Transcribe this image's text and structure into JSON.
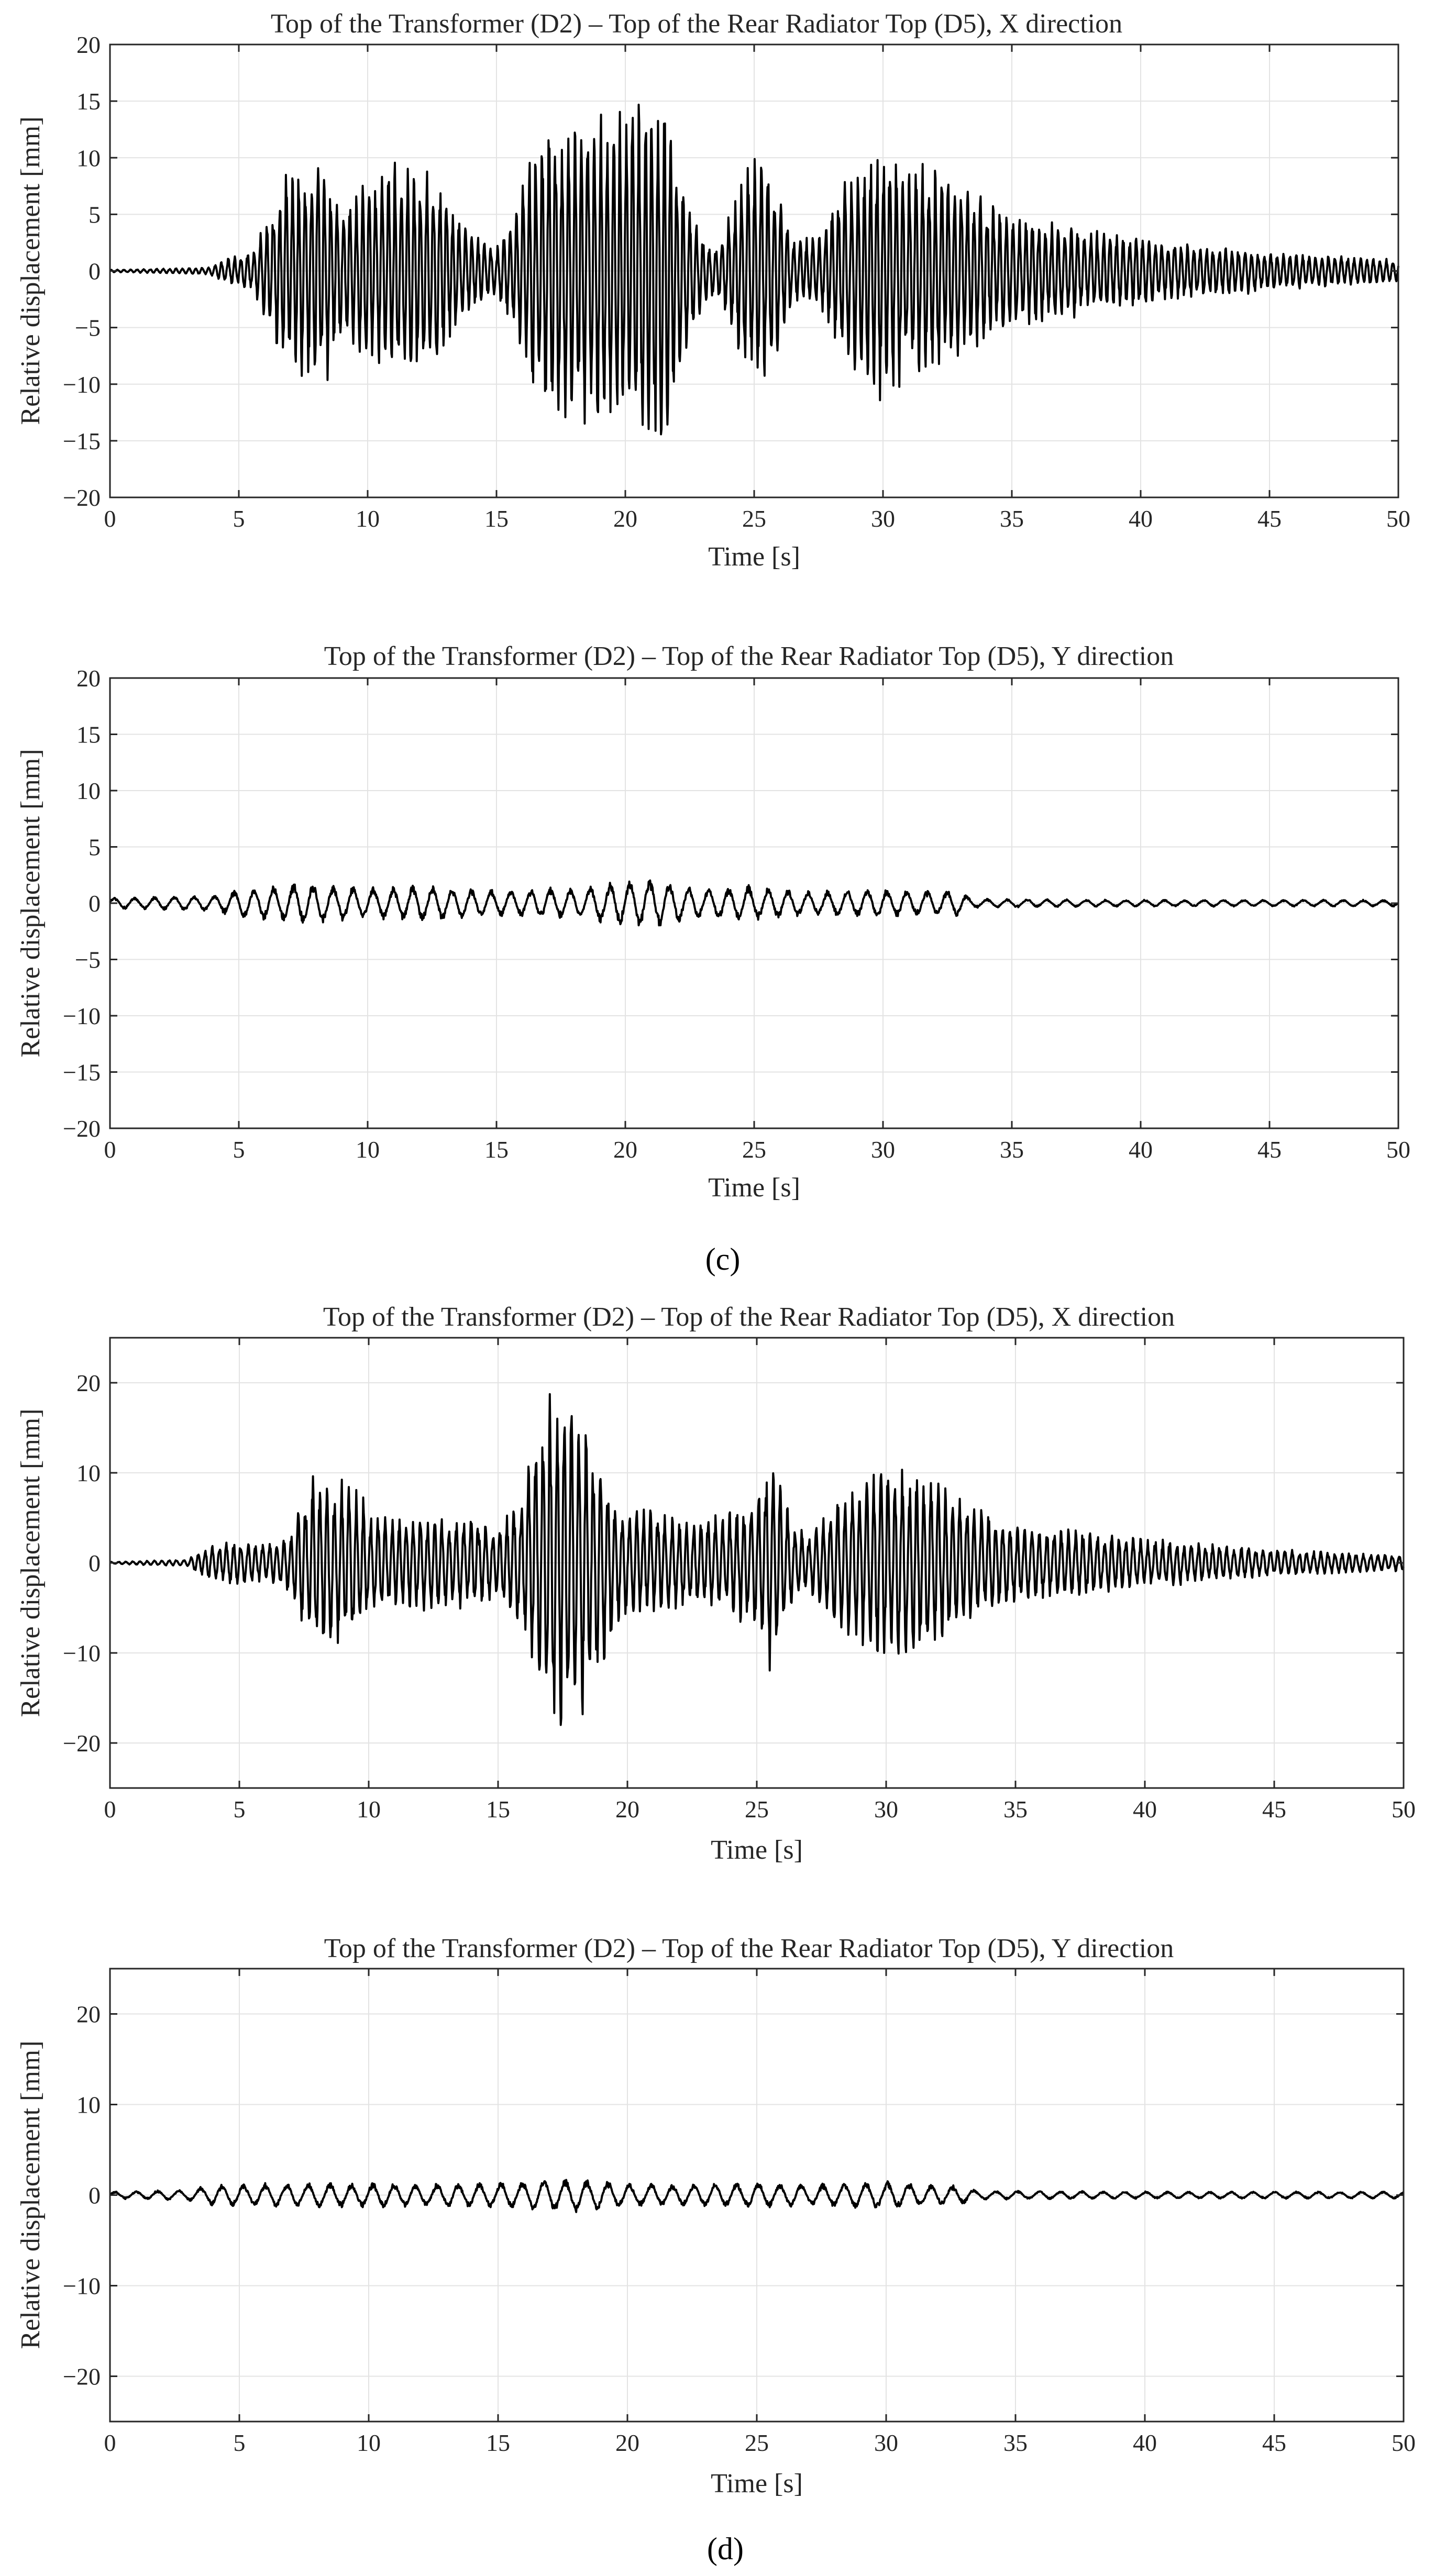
{
  "colors": {
    "trace": "#000000",
    "axis": "#262626",
    "grid": "#e3e3e3",
    "background": "#ffffff"
  },
  "panel_labels": [
    "(c)",
    "(d)"
  ],
  "chart_data": [
    {
      "type": "line",
      "title": "Top of the Transformer (D2) – Top of the Rear Radiator Top (D5), X direction",
      "xlabel": "Time [s]",
      "ylabel": "Relative displacement [mm]",
      "xlim": [
        0,
        50
      ],
      "ylim": [
        -20,
        20
      ],
      "xticks": [
        0,
        5,
        10,
        15,
        20,
        25,
        30,
        35,
        40,
        45,
        50
      ],
      "yticks": [
        -20,
        -15,
        -10,
        -5,
        0,
        5,
        10,
        15,
        20
      ],
      "grid": true,
      "series": [
        {
          "envelope": [
            [
              0,
              0.1
            ],
            [
              3.8,
              0.3
            ],
            [
              4.6,
              1.2
            ],
            [
              5.5,
              1.8
            ],
            [
              6.2,
              5.0
            ],
            [
              6.8,
              9.0
            ],
            [
              7.5,
              9.5
            ],
            [
              8.3,
              10.5
            ],
            [
              9.0,
              6.0
            ],
            [
              10.0,
              8.0
            ],
            [
              11.0,
              9.5
            ],
            [
              12.0,
              10.0
            ],
            [
              12.8,
              8.5
            ],
            [
              13.5,
              5.0
            ],
            [
              14.3,
              3.0
            ],
            [
              15.0,
              2.0
            ],
            [
              15.8,
              6.0
            ],
            [
              16.5,
              12.0
            ],
            [
              17.5,
              13.0
            ],
            [
              18.5,
              14.0
            ],
            [
              19.5,
              13.5
            ],
            [
              20.5,
              16.5
            ],
            [
              21.3,
              17.0
            ],
            [
              22.0,
              11.0
            ],
            [
              22.8,
              4.0
            ],
            [
              23.5,
              2.0
            ],
            [
              24.3,
              7.0
            ],
            [
              25.0,
              11.0
            ],
            [
              25.8,
              8.5
            ],
            [
              26.5,
              3.0
            ],
            [
              27.5,
              3.0
            ],
            [
              28.2,
              7.0
            ],
            [
              29.0,
              9.5
            ],
            [
              30.0,
              12.0
            ],
            [
              31.0,
              9.5
            ],
            [
              32.0,
              9.5
            ],
            [
              33.0,
              8.0
            ],
            [
              35.0,
              5.0
            ],
            [
              40.0,
              3.0
            ],
            [
              45.0,
              1.8
            ],
            [
              50.0,
              1.0
            ]
          ],
          "cycles_per_second": 4.0
        }
      ]
    },
    {
      "type": "line",
      "title": "Top of the Transformer (D2) – Top of the Rear Radiator Top (D5), Y direction",
      "xlabel": "Time [s]",
      "ylabel": "Relative displacement [mm]",
      "xlim": [
        0,
        50
      ],
      "ylim": [
        -20,
        20
      ],
      "xticks": [
        0,
        5,
        10,
        15,
        20,
        25,
        30,
        35,
        40,
        45,
        50
      ],
      "yticks": [
        -20,
        -15,
        -10,
        -5,
        0,
        5,
        10,
        15,
        20
      ],
      "grid": true,
      "series": [
        {
          "envelope": [
            [
              0,
              0.5
            ],
            [
              4.0,
              0.7
            ],
            [
              5.0,
              1.3
            ],
            [
              7.5,
              1.8
            ],
            [
              10.0,
              1.4
            ],
            [
              12.0,
              1.6
            ],
            [
              15.0,
              1.2
            ],
            [
              18.0,
              1.4
            ],
            [
              21.0,
              2.3
            ],
            [
              23.0,
              1.3
            ],
            [
              25.0,
              1.6
            ],
            [
              27.0,
              1.1
            ],
            [
              30.0,
              1.3
            ],
            [
              32.0,
              1.1
            ],
            [
              32.8,
              1.3
            ],
            [
              33.5,
              0.4
            ],
            [
              40.0,
              0.3
            ],
            [
              50.0,
              0.3
            ]
          ],
          "cycles_per_second": 1.3
        }
      ]
    },
    {
      "type": "line",
      "title": "Top of the Transformer (D2) – Top of the Rear Radiator Top (D5), X direction",
      "xlabel": "Time [s]",
      "ylabel": "Relative displacement [mm]",
      "xlim": [
        0,
        50
      ],
      "ylim": [
        -25,
        25
      ],
      "xticks": [
        0,
        5,
        10,
        15,
        20,
        25,
        30,
        35,
        40,
        45,
        50
      ],
      "yticks": [
        -20,
        -10,
        0,
        10,
        20
      ],
      "grid": true,
      "series": [
        {
          "envelope": [
            [
              0,
              0.1
            ],
            [
              3.0,
              0.4
            ],
            [
              3.8,
              2.0
            ],
            [
              5.0,
              2.5
            ],
            [
              6.0,
              2.0
            ],
            [
              7.0,
              3.5
            ],
            [
              7.8,
              10.0
            ],
            [
              8.5,
              9.0
            ],
            [
              9.3,
              10.0
            ],
            [
              10.0,
              6.0
            ],
            [
              11.0,
              5.0
            ],
            [
              12.0,
              5.5
            ],
            [
              13.0,
              5.0
            ],
            [
              14.0,
              5.5
            ],
            [
              15.0,
              4.0
            ],
            [
              15.8,
              7.0
            ],
            [
              16.5,
              14.0
            ],
            [
              17.2,
              20.5
            ],
            [
              17.7,
              20.0
            ],
            [
              18.3,
              17.0
            ],
            [
              19.0,
              12.0
            ],
            [
              19.8,
              6.0
            ],
            [
              21.0,
              6.0
            ],
            [
              22.0,
              5.0
            ],
            [
              23.0,
              5.0
            ],
            [
              24.0,
              6.0
            ],
            [
              25.0,
              7.5
            ],
            [
              25.6,
              13.5
            ],
            [
              26.3,
              5.0
            ],
            [
              27.0,
              3.0
            ],
            [
              28.0,
              7.0
            ],
            [
              29.0,
              9.5
            ],
            [
              30.0,
              11.5
            ],
            [
              31.5,
              10.0
            ],
            [
              33.0,
              7.0
            ],
            [
              35.0,
              4.5
            ],
            [
              40.0,
              2.8
            ],
            [
              45.0,
              1.5
            ],
            [
              50.0,
              0.9
            ]
          ],
          "cycles_per_second": 3.6
        }
      ]
    },
    {
      "type": "line",
      "title": "Top of the Transformer (D2) – Top of the Rear Radiator Top (D5), Y direction",
      "xlabel": "Time [s]",
      "ylabel": "Relative displacement [mm]",
      "xlim": [
        0,
        50
      ],
      "ylim": [
        -25,
        25
      ],
      "xticks": [
        0,
        5,
        10,
        15,
        20,
        25,
        30,
        35,
        40,
        45,
        50
      ],
      "yticks": [
        -20,
        -10,
        0,
        10,
        20
      ],
      "grid": true,
      "series": [
        {
          "envelope": [
            [
              0,
              0.4
            ],
            [
              3.0,
              0.6
            ],
            [
              4.0,
              1.2
            ],
            [
              8.0,
              1.4
            ],
            [
              12.0,
              1.3
            ],
            [
              15.0,
              1.4
            ],
            [
              18.0,
              1.9
            ],
            [
              20.0,
              1.3
            ],
            [
              22.0,
              1.2
            ],
            [
              25.0,
              1.4
            ],
            [
              27.0,
              1.2
            ],
            [
              30.0,
              1.5
            ],
            [
              33.0,
              1.0
            ],
            [
              33.5,
              0.5
            ],
            [
              40.0,
              0.4
            ],
            [
              50.0,
              0.4
            ]
          ],
          "cycles_per_second": 1.2
        }
      ]
    }
  ]
}
